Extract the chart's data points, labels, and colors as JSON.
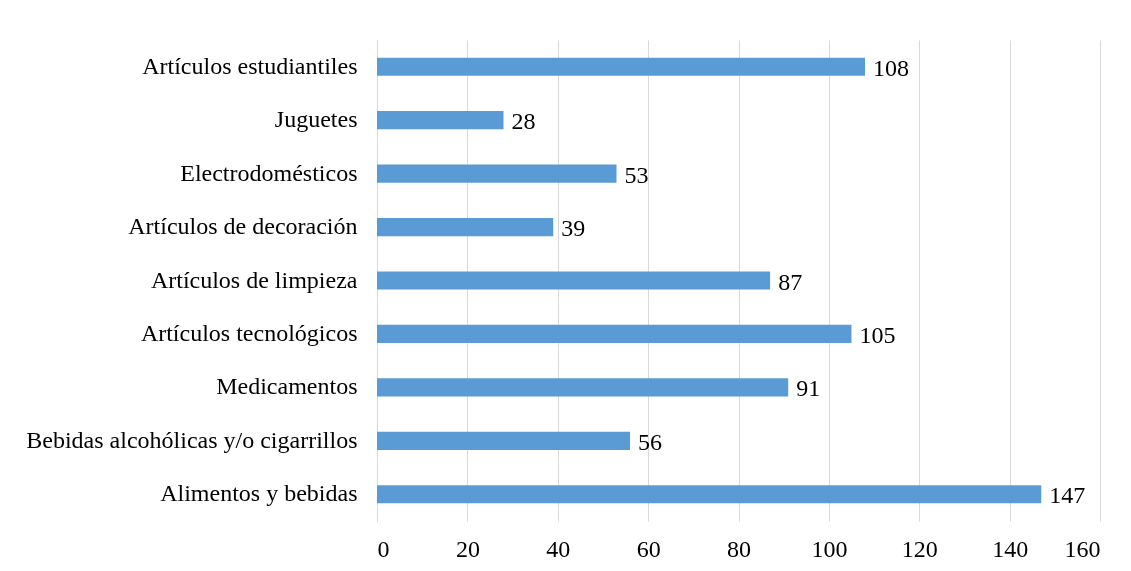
{
  "chart_data": {
    "type": "bar",
    "orientation": "horizontal",
    "categories": [
      "Artículos estudiantiles",
      "Juguetes",
      "Electrodomésticos",
      "Artículos de decoración",
      "Artículos de limpieza",
      "Artículos tecnológicos",
      "Medicamentos",
      "Bebidas alcohólicas y/o cigarrillos",
      "Alimentos y bebidas"
    ],
    "values": [
      108,
      28,
      53,
      39,
      87,
      105,
      91,
      56,
      147
    ],
    "color": "#5b9bd5",
    "xlim": [
      0,
      160
    ],
    "xticks": [
      0,
      20,
      40,
      60,
      80,
      100,
      120,
      140,
      160
    ],
    "grid": "x",
    "data_labels": true
  }
}
